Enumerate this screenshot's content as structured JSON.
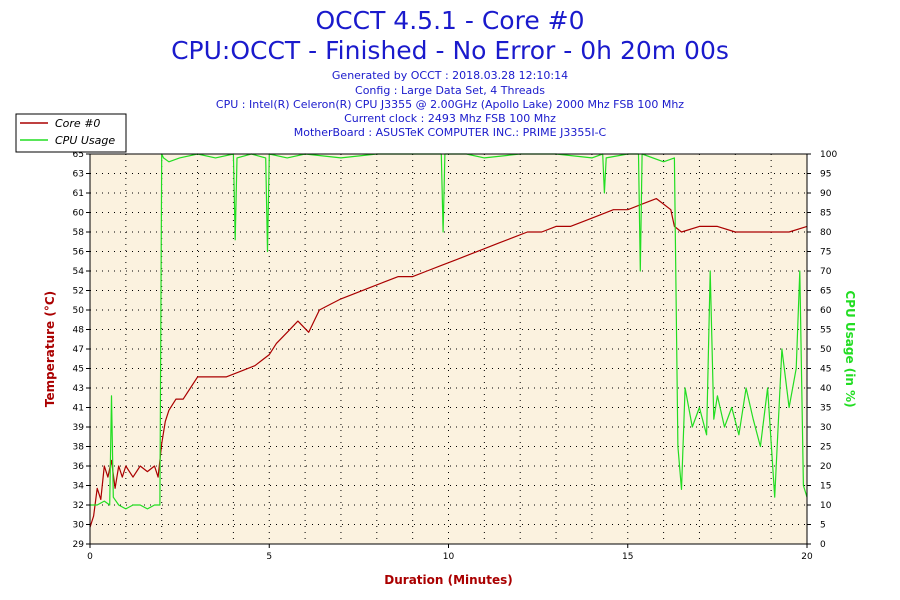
{
  "chart_data": {
    "type": "line",
    "title": "OCCT 4.5.1 - Core #0",
    "subtitle": "CPU:OCCT - Finished - No Error - 0h 20m 00s",
    "info_lines": [
      "Generated by OCCT : 2018.03.28 12:10:14",
      "Config : Large Data Set, 4 Threads",
      "CPU : Intel(R) Celeron(R) CPU J3355 @ 2.00GHz (Apollo Lake) 2000 Mhz FSB 100 Mhz",
      "Current clock : 2493 Mhz FSB 100 Mhz",
      "MotherBoard : ASUSTeK COMPUTER INC.: PRIME J3355I-C"
    ],
    "xlabel": "Duration (Minutes)",
    "ylabel_left": "Temperature (°C)",
    "ylabel_right": "CPU Usage (in %)",
    "xlim": [
      0,
      20
    ],
    "x_ticks": [
      "0",
      "5",
      "10",
      "15",
      "20"
    ],
    "ylim_left": [
      29,
      64
    ],
    "y_ticks_left": [
      "29",
      "30",
      "32",
      "34",
      "36",
      "38",
      "39",
      "41",
      "43",
      "45",
      "47",
      "48",
      "50",
      "52",
      "54",
      "56",
      "58",
      "60",
      "61",
      "63",
      "65"
    ],
    "ylim_right": [
      0,
      100
    ],
    "y_ticks_right": [
      "0",
      "5",
      "10",
      "15",
      "20",
      "25",
      "30",
      "35",
      "40",
      "45",
      "50",
      "55",
      "60",
      "65",
      "70",
      "75",
      "80",
      "85",
      "90",
      "95",
      "100"
    ],
    "grid": true,
    "legend_position": "top-left",
    "colors": {
      "temperature": "#aa0000",
      "cpu_usage": "#22dd22",
      "plot_background": "#fbf2df",
      "axis_label_left": "#aa0000",
      "axis_label_right": "#22dd22",
      "title": "#1a1acc"
    },
    "series": [
      {
        "name": "Core #0",
        "axis": "left",
        "color": "#aa0000",
        "x": [
          0,
          0.1,
          0.2,
          0.3,
          0.4,
          0.5,
          0.6,
          0.7,
          0.8,
          0.9,
          1.0,
          1.2,
          1.4,
          1.6,
          1.8,
          1.9,
          2.0,
          2.1,
          2.2,
          2.4,
          2.6,
          2.8,
          3.0,
          3.4,
          3.8,
          4.2,
          4.6,
          4.8,
          5.0,
          5.2,
          5.5,
          5.8,
          6.1,
          6.4,
          6.7,
          7.0,
          7.4,
          7.8,
          8.2,
          8.6,
          9.0,
          9.4,
          9.8,
          10.2,
          10.6,
          11.0,
          11.4,
          11.8,
          12.2,
          12.6,
          13.0,
          13.4,
          13.8,
          14.2,
          14.6,
          15.0,
          15.4,
          15.8,
          16.0,
          16.2,
          16.3,
          16.5,
          17.0,
          17.5,
          18.0,
          18.5,
          19.0,
          19.5,
          20.0
        ],
        "y": [
          30.5,
          31.5,
          34,
          33,
          36,
          35,
          36.5,
          34,
          36,
          35,
          36,
          35,
          36,
          35.5,
          36,
          35,
          38,
          40,
          41,
          42,
          42,
          43,
          44,
          44,
          44,
          44.5,
          45,
          45.5,
          46,
          47,
          48,
          49,
          48,
          50,
          50.5,
          51,
          51.5,
          52,
          52.5,
          53,
          53,
          53.5,
          54,
          54.5,
          55,
          55.5,
          56,
          56.5,
          57,
          57,
          57.5,
          57.5,
          58,
          58.5,
          59,
          59,
          59.5,
          60,
          59.5,
          59,
          57.5,
          57,
          57.5,
          57.5,
          57,
          57,
          57,
          57,
          57.5
        ]
      },
      {
        "name": "CPU Usage",
        "axis": "right",
        "color": "#22dd22",
        "x": [
          0,
          0.2,
          0.4,
          0.55,
          0.6,
          0.65,
          0.8,
          1.0,
          1.2,
          1.4,
          1.6,
          1.8,
          1.95,
          2.0,
          2.05,
          2.2,
          2.5,
          3.0,
          3.5,
          4.0,
          4.05,
          4.1,
          4.5,
          4.9,
          4.95,
          5.0,
          5.5,
          6.0,
          7.0,
          8.0,
          9.0,
          9.8,
          9.85,
          9.9,
          10.5,
          11.0,
          12.0,
          13.0,
          14.0,
          14.3,
          14.35,
          14.4,
          15.0,
          15.3,
          15.35,
          15.4,
          16.0,
          16.3,
          16.4,
          16.5,
          16.6,
          16.8,
          17.0,
          17.2,
          17.3,
          17.4,
          17.5,
          17.7,
          17.9,
          18.1,
          18.3,
          18.5,
          18.7,
          18.9,
          19.1,
          19.3,
          19.5,
          19.7,
          19.8,
          19.9,
          20.0
        ],
        "y": [
          10,
          10,
          11,
          10,
          38,
          12,
          10,
          9,
          10,
          10,
          9,
          10,
          10,
          100,
          99,
          98,
          99,
          100,
          99,
          100,
          78,
          99,
          100,
          99,
          75,
          100,
          99,
          100,
          99,
          100,
          100,
          100,
          80,
          100,
          100,
          99,
          100,
          100,
          99,
          100,
          90,
          99,
          100,
          100,
          70,
          100,
          98,
          99,
          25,
          14,
          40,
          30,
          35,
          28,
          70,
          32,
          38,
          30,
          35,
          28,
          40,
          32,
          25,
          40,
          12,
          50,
          35,
          45,
          70,
          15,
          12
        ]
      }
    ]
  }
}
